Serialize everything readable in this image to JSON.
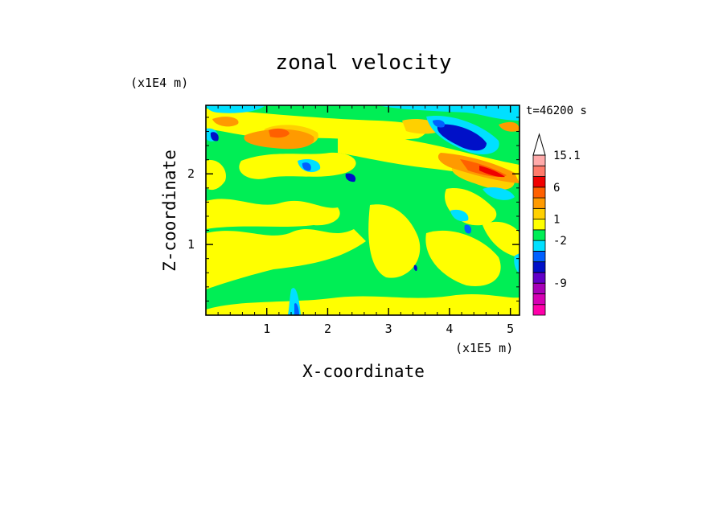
{
  "chart_data": {
    "type": "heatmap",
    "title": "zonal velocity",
    "xlabel": "X-coordinate",
    "ylabel": "Z-coordinate",
    "x_unit": "(x1E5 m)",
    "y_unit": "(x1E4 m)",
    "time_label": "t=46200 s",
    "xlim": [
      0,
      5.15
    ],
    "ylim": [
      0,
      2.97
    ],
    "xticks": [
      1,
      2,
      3,
      4,
      5
    ],
    "yticks": [
      1,
      2
    ],
    "colorbar": {
      "levels": [
        {
          "color": "#ff00aa",
          "label": ""
        },
        {
          "color": "#d600b4",
          "label": ""
        },
        {
          "color": "#a800b8",
          "label": "-9"
        },
        {
          "color": "#6200c8",
          "label": ""
        },
        {
          "color": "#0010c8",
          "label": ""
        },
        {
          "color": "#0060ff",
          "label": ""
        },
        {
          "color": "#00e0ff",
          "label": "-2"
        },
        {
          "color": "#00ee55",
          "label": ""
        },
        {
          "color": "#ffff00",
          "label": "1"
        },
        {
          "color": "#ffd000",
          "label": ""
        },
        {
          "color": "#ff9a00",
          "label": ""
        },
        {
          "color": "#ff6000",
          "label": "6"
        },
        {
          "color": "#f00000",
          "label": ""
        },
        {
          "color": "#ff7a6a",
          "label": ""
        },
        {
          "color": "#ffaaaa",
          "label": "15.1"
        }
      ]
    },
    "field_palette": {
      "green": "#00ee55",
      "yellow": "#ffff00",
      "gold": "#ffd000",
      "orange": "#ff9a00",
      "dark_orange": "#ff6000",
      "red": "#f00000",
      "cyan": "#00e0ff",
      "blue": "#0060ff",
      "navy": "#0010c8"
    }
  }
}
